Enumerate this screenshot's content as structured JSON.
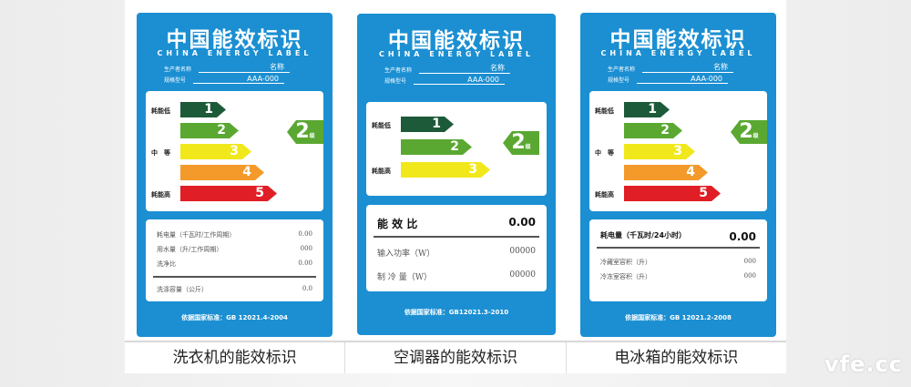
{
  "labels": [
    {
      "title": "中国能效标识",
      "subtitle": "CHINA ENERGY LABEL",
      "producer_label": "生产者名称",
      "producer": "名称",
      "model_label": "规格型号",
      "model": "AAA-000",
      "grades": [
        "1",
        "2",
        "3",
        "4",
        "5"
      ],
      "side_labels": {
        "low": "耗能低",
        "mid": "中　等",
        "high": "耗能高"
      },
      "rating": "2",
      "rating_unit": "级",
      "main": null,
      "rows": [
        {
          "label": "耗电量（千瓦时/工作周期）",
          "value": "0.00"
        },
        {
          "label": "用水量（升/工作周期）",
          "value": "000"
        },
        {
          "label": "洗净比",
          "value": "0.00"
        }
      ],
      "extra": {
        "label": "洗涤容量（公斤）",
        "value": "0.0"
      },
      "footer": "依据国家标准：GB 12021.4-2004",
      "caption": "洗衣机的能效标识"
    },
    {
      "title": "中国能效标识",
      "subtitle": "CHINA ENERGY LABEL",
      "producer_label": "生产者名称",
      "producer": "名称",
      "model_label": "规格型号",
      "model": "AAA-000",
      "grades": [
        "1",
        "2",
        "3"
      ],
      "side_labels": {
        "low": "耗能低",
        "high": "耗能高"
      },
      "rating": "2",
      "rating_unit": "级",
      "main": {
        "label": "能 效 比",
        "value": "0.00"
      },
      "rows": [
        {
          "label": "输入功率（W）",
          "value": "00000"
        },
        {
          "label": "制 冷 量（W）",
          "value": "00000"
        }
      ],
      "footer": "依据国家标准：GB12021.3-2010",
      "caption": "空调器的能效标识"
    },
    {
      "title": "中国能效标识",
      "subtitle": "CHINA ENERGY LABEL",
      "producer_label": "生产者名称",
      "producer": "名称",
      "model_label": "规格型号",
      "model": "AAA-000",
      "grades": [
        "1",
        "2",
        "3",
        "4",
        "5"
      ],
      "side_labels": {
        "low": "耗能低",
        "mid": "中　等",
        "high": "耗能高"
      },
      "rating": "2",
      "rating_unit": "级",
      "main": {
        "label": "耗电量（千瓦时/24小时）",
        "value": "0.00"
      },
      "rows": [
        {
          "label": "冷藏室容积（升）",
          "value": "000"
        },
        {
          "label": "冷冻室容积（升）",
          "value": "000"
        }
      ],
      "footer": "依据国家标准：GB 12021.2-2008",
      "caption": "电冰箱的能效标识"
    }
  ],
  "grade_colors": [
    "#1d5a3a",
    "#5aa832",
    "#f1e81c",
    "#f39a2b",
    "#e01e25"
  ],
  "label_color": "#1b8fd2",
  "watermark": "vfe.cc"
}
